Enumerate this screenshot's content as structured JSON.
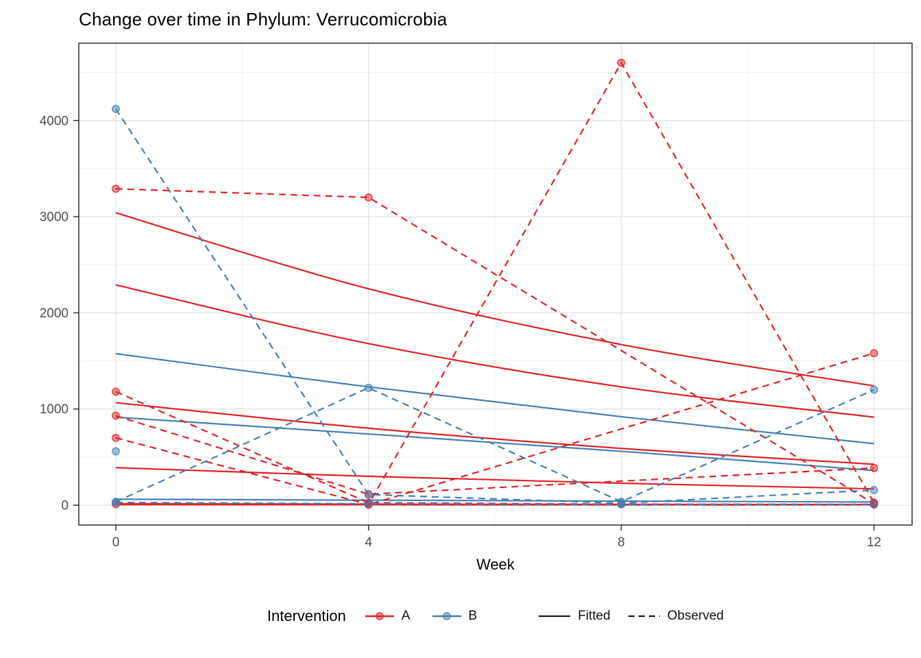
{
  "title": "Change over time in Phylum: Verrucomicrobia",
  "axes": {
    "x": {
      "label": "Week",
      "tick_labels": [
        "0",
        "4",
        "8",
        "12"
      ],
      "tick_values": [
        0,
        4,
        8,
        12
      ],
      "minor_values": [
        2,
        6,
        10
      ]
    },
    "y": {
      "tick_labels": [
        "0",
        "1000",
        "2000",
        "3000",
        "4000"
      ],
      "tick_values": [
        0,
        1000,
        2000,
        3000,
        4000
      ],
      "minor_values": [
        500,
        1500,
        2500,
        3500,
        4500
      ]
    }
  },
  "legend": {
    "title": "Intervention",
    "groups": [
      {
        "id": "A",
        "label": "A",
        "color": "#E02124"
      },
      {
        "id": "B",
        "label": "B",
        "color": "#4380B5"
      }
    ],
    "linetypes": [
      {
        "label": "Fitted",
        "style": "solid"
      },
      {
        "label": "Observed",
        "style": "dashed"
      }
    ],
    "linetype_color": "#1A1A1A"
  },
  "chart_data": {
    "type": "line",
    "title": "Change over time in Phylum: Verrucomicrobia",
    "xlabel": "Week",
    "ylabel": "",
    "x": [
      0,
      4,
      8,
      12
    ],
    "xlim": [
      -2.3,
      14.4
    ],
    "ylim": [
      0,
      4760
    ],
    "grid": true,
    "legend_position": "bottom",
    "colors": {
      "A": "#E02124",
      "B": "#4380B5"
    },
    "series_fitted": [
      {
        "group": "A",
        "values": [
          3040,
          2250,
          1670,
          1240
        ]
      },
      {
        "group": "A",
        "values": [
          2290,
          1680,
          1230,
          915
        ]
      },
      {
        "group": "A",
        "values": [
          1065,
          800,
          590,
          425
        ]
      },
      {
        "group": "A",
        "values": [
          390,
          300,
          228,
          170
        ]
      },
      {
        "group": "A",
        "values": [
          15,
          11,
          8,
          6
        ]
      },
      {
        "group": "A",
        "values": [
          5,
          4,
          3,
          3
        ]
      },
      {
        "group": "B",
        "values": [
          1575,
          1230,
          920,
          640
        ]
      },
      {
        "group": "B",
        "values": [
          915,
          740,
          560,
          360
        ]
      },
      {
        "group": "B",
        "values": [
          62,
          52,
          42,
          33
        ]
      }
    ],
    "series_observed": [
      {
        "group": "A",
        "values": [
          3290,
          3200,
          null,
          15
        ]
      },
      {
        "group": "A",
        "values": [
          1180,
          25,
          10,
          8
        ]
      },
      {
        "group": "A",
        "values": [
          930,
          114,
          null,
          386
        ]
      },
      {
        "group": "A",
        "values": [
          700,
          8,
          4600,
          25
        ]
      },
      {
        "group": "A",
        "values": [
          10,
          5,
          null,
          1580
        ]
      },
      {
        "group": "B",
        "values": [
          4120,
          110,
          20,
          157
        ]
      },
      {
        "group": "B",
        "values": [
          560,
          null,
          null,
          null
        ]
      },
      {
        "group": "B",
        "values": [
          35,
          1220,
          36,
          1200
        ]
      },
      {
        "group": "B",
        "values": [
          28,
          15,
          8,
          5
        ]
      }
    ]
  }
}
